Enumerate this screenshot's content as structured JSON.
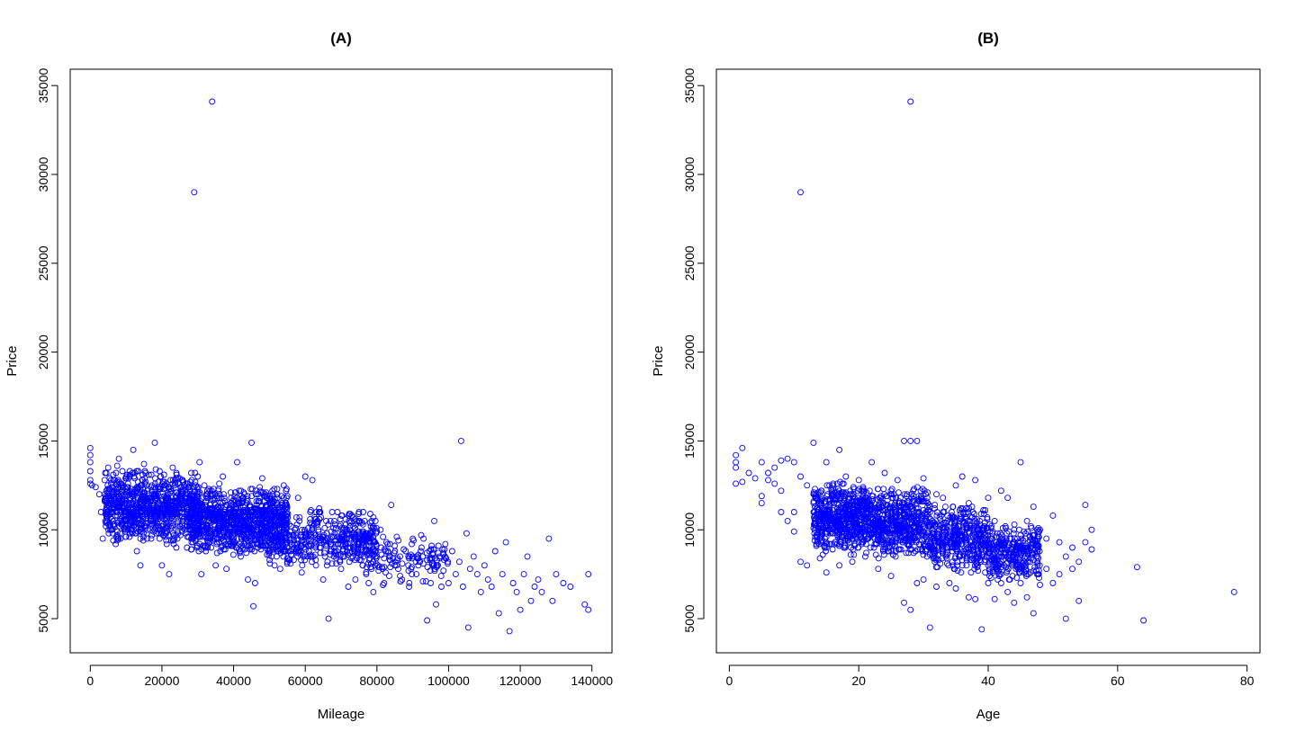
{
  "chart_data": [
    {
      "type": "scatter",
      "title": "(A)",
      "xlabel": "Mileage",
      "ylabel": "Price",
      "xlim": [
        -5600,
        145600
      ],
      "ylim": [
        3080,
        35920
      ],
      "xticks": [
        0,
        20000,
        40000,
        60000,
        80000,
        100000,
        120000,
        140000
      ],
      "yticks": [
        5000,
        10000,
        15000,
        20000,
        25000,
        30000,
        35000
      ],
      "grid": false,
      "legend": "none",
      "marker_color": "#0000FF",
      "points": [
        [
          0,
          14600
        ],
        [
          0,
          14200
        ],
        [
          0,
          13800
        ],
        [
          0,
          13300
        ],
        [
          0,
          12800
        ],
        [
          0,
          12600
        ],
        [
          500,
          12500
        ],
        [
          1500,
          12400
        ],
        [
          2500,
          12000
        ],
        [
          3000,
          11000
        ],
        [
          3500,
          9500
        ],
        [
          4000,
          12800
        ],
        [
          4500,
          13200
        ],
        [
          5000,
          13500
        ],
        [
          6000,
          12000
        ],
        [
          6500,
          11200
        ],
        [
          7000,
          10800
        ],
        [
          7500,
          13600
        ],
        [
          8000,
          14000
        ],
        [
          9000,
          11500
        ],
        [
          10000,
          10500
        ],
        [
          10500,
          12200
        ],
        [
          11000,
          13000
        ],
        [
          12000,
          14500
        ],
        [
          12500,
          9800
        ],
        [
          13000,
          8800
        ],
        [
          14000,
          8000
        ],
        [
          14500,
          12800
        ],
        [
          15000,
          13700
        ],
        [
          16000,
          10000
        ],
        [
          17000,
          9500
        ],
        [
          18000,
          14900
        ],
        [
          19000,
          11000
        ],
        [
          20000,
          8000
        ],
        [
          21000,
          12500
        ],
        [
          22000,
          7500
        ],
        [
          23000,
          13500
        ],
        [
          24000,
          9000
        ],
        [
          25000,
          11800
        ],
        [
          26000,
          12700
        ],
        [
          27000,
          9000
        ],
        [
          28000,
          10200
        ],
        [
          29000,
          29000
        ],
        [
          30000,
          13000
        ],
        [
          30500,
          13800
        ],
        [
          31000,
          7500
        ],
        [
          32000,
          9000
        ],
        [
          33000,
          11000
        ],
        [
          34000,
          34100
        ],
        [
          35000,
          8000
        ],
        [
          36000,
          12600
        ],
        [
          37000,
          13000
        ],
        [
          38000,
          7800
        ],
        [
          39000,
          11200
        ],
        [
          40000,
          9200
        ],
        [
          41000,
          13800
        ],
        [
          42000,
          8500
        ],
        [
          43000,
          12000
        ],
        [
          44000,
          7200
        ],
        [
          45000,
          14900
        ],
        [
          45500,
          5700
        ],
        [
          46000,
          7000
        ],
        [
          47000,
          10800
        ],
        [
          48000,
          12900
        ],
        [
          50000,
          8800
        ],
        [
          52000,
          11500
        ],
        [
          53000,
          7800
        ],
        [
          54000,
          12500
        ],
        [
          55000,
          8200
        ],
        [
          56000,
          10200
        ],
        [
          57000,
          9000
        ],
        [
          58000,
          11800
        ],
        [
          59000,
          7600
        ],
        [
          60000,
          13000
        ],
        [
          61000,
          9500
        ],
        [
          62000,
          12800
        ],
        [
          63000,
          8000
        ],
        [
          64000,
          11000
        ],
        [
          65000,
          7200
        ],
        [
          66000,
          9800
        ],
        [
          66500,
          5000
        ],
        [
          67000,
          10500
        ],
        [
          68000,
          8500
        ],
        [
          69000,
          11000
        ],
        [
          70000,
          7800
        ],
        [
          71000,
          9500
        ],
        [
          72000,
          6800
        ],
        [
          73000,
          10800
        ],
        [
          74000,
          7200
        ],
        [
          75000,
          11000
        ],
        [
          76000,
          8000
        ],
        [
          77000,
          7500
        ],
        [
          78000,
          9800
        ],
        [
          79000,
          6500
        ],
        [
          80000,
          8500
        ],
        [
          81000,
          10000
        ],
        [
          82000,
          7000
        ],
        [
          83000,
          9200
        ],
        [
          84000,
          11400
        ],
        [
          85000,
          8000
        ],
        [
          86000,
          9400
        ],
        [
          87000,
          7200
        ],
        [
          88000,
          8800
        ],
        [
          89000,
          6800
        ],
        [
          90000,
          9500
        ],
        [
          91000,
          7500
        ],
        [
          92000,
          8200
        ],
        [
          93000,
          9500
        ],
        [
          94000,
          4900
        ],
        [
          95000,
          7000
        ],
        [
          96000,
          10500
        ],
        [
          96500,
          5800
        ],
        [
          97000,
          8000
        ],
        [
          98000,
          6800
        ],
        [
          99000,
          8500
        ],
        [
          100000,
          7000
        ],
        [
          101000,
          8800
        ],
        [
          102000,
          7500
        ],
        [
          103000,
          8200
        ],
        [
          103500,
          15000
        ],
        [
          104000,
          6800
        ],
        [
          105000,
          9800
        ],
        [
          105500,
          4500
        ],
        [
          106000,
          7800
        ],
        [
          107000,
          8500
        ],
        [
          108000,
          7500
        ],
        [
          109000,
          6500
        ],
        [
          110000,
          8000
        ],
        [
          111000,
          7200
        ],
        [
          112000,
          6800
        ],
        [
          113000,
          8800
        ],
        [
          114000,
          5300
        ],
        [
          115000,
          7500
        ],
        [
          116000,
          9300
        ],
        [
          117000,
          4300
        ],
        [
          118000,
          7000
        ],
        [
          119000,
          6500
        ],
        [
          120000,
          5500
        ],
        [
          121000,
          7500
        ],
        [
          122000,
          8500
        ],
        [
          123000,
          6000
        ],
        [
          124000,
          6800
        ],
        [
          125000,
          7200
        ],
        [
          126000,
          6500
        ],
        [
          128000,
          9500
        ],
        [
          129000,
          6000
        ],
        [
          130000,
          7500
        ],
        [
          132000,
          7000
        ],
        [
          134000,
          6800
        ],
        [
          138000,
          5800
        ],
        [
          139000,
          7500
        ],
        [
          139000,
          5500
        ]
      ],
      "cloud_density": [
        {
          "x": [
            4000,
            30000
          ],
          "y": [
            9000,
            13500
          ],
          "n": 900
        },
        {
          "x": [
            28000,
            55000
          ],
          "y": [
            8500,
            12500
          ],
          "n": 1000
        },
        {
          "x": [
            50000,
            80000
          ],
          "y": [
            7800,
            11200
          ],
          "n": 450
        },
        {
          "x": [
            75000,
            100000
          ],
          "y": [
            6800,
            9800
          ],
          "n": 140
        }
      ]
    },
    {
      "type": "scatter",
      "title": "(B)",
      "xlabel": "Age",
      "ylabel": "Price",
      "xlim": [
        -2,
        82
      ],
      "ylim": [
        3080,
        35920
      ],
      "xticks": [
        0,
        20,
        40,
        60,
        80
      ],
      "yticks": [
        5000,
        10000,
        15000,
        20000,
        25000,
        30000,
        35000
      ],
      "grid": false,
      "legend": "none",
      "marker_color": "#0000FF",
      "points": [
        [
          1,
          14200
        ],
        [
          1,
          13800
        ],
        [
          1,
          13500
        ],
        [
          1,
          12600
        ],
        [
          2,
          14600
        ],
        [
          2,
          12700
        ],
        [
          3,
          13200
        ],
        [
          4,
          12900
        ],
        [
          5,
          13800
        ],
        [
          5,
          11900
        ],
        [
          5,
          11500
        ],
        [
          6,
          13200
        ],
        [
          6,
          12800
        ],
        [
          7,
          13500
        ],
        [
          7,
          12600
        ],
        [
          8,
          13900
        ],
        [
          8,
          12200
        ],
        [
          8,
          11000
        ],
        [
          9,
          14000
        ],
        [
          9,
          10500
        ],
        [
          10,
          13800
        ],
        [
          10,
          11000
        ],
        [
          10,
          9900
        ],
        [
          11,
          29000
        ],
        [
          11,
          13000
        ],
        [
          11,
          8200
        ],
        [
          12,
          12500
        ],
        [
          12,
          8000
        ],
        [
          13,
          14900
        ],
        [
          13,
          12000
        ],
        [
          14,
          8400
        ],
        [
          15,
          13800
        ],
        [
          15,
          9000
        ],
        [
          15,
          7600
        ],
        [
          16,
          12500
        ],
        [
          17,
          14500
        ],
        [
          17,
          8000
        ],
        [
          18,
          13000
        ],
        [
          19,
          8200
        ],
        [
          20,
          12800
        ],
        [
          21,
          8500
        ],
        [
          22,
          13800
        ],
        [
          23,
          7800
        ],
        [
          24,
          13200
        ],
        [
          25,
          7400
        ],
        [
          26,
          12800
        ],
        [
          27,
          15000
        ],
        [
          27,
          5900
        ],
        [
          28,
          15000
        ],
        [
          28,
          34100
        ],
        [
          28,
          5500
        ],
        [
          29,
          15000
        ],
        [
          29,
          7000
        ],
        [
          30,
          12900
        ],
        [
          30,
          7200
        ],
        [
          31,
          11000
        ],
        [
          31,
          4500
        ],
        [
          32,
          12000
        ],
        [
          32,
          6800
        ],
        [
          33,
          9500
        ],
        [
          33,
          11800
        ],
        [
          34,
          7000
        ],
        [
          35,
          12500
        ],
        [
          35,
          6700
        ],
        [
          36,
          13000
        ],
        [
          36,
          8000
        ],
        [
          37,
          11500
        ],
        [
          37,
          6200
        ],
        [
          38,
          12800
        ],
        [
          38,
          6100
        ],
        [
          39,
          10000
        ],
        [
          39,
          4400
        ],
        [
          40,
          11800
        ],
        [
          40,
          7000
        ],
        [
          41,
          10500
        ],
        [
          41,
          6100
        ],
        [
          42,
          12200
        ],
        [
          42,
          7000
        ],
        [
          43,
          11800
        ],
        [
          43,
          6500
        ],
        [
          44,
          10000
        ],
        [
          44,
          5900
        ],
        [
          45,
          13800
        ],
        [
          45,
          7000
        ],
        [
          46,
          10500
        ],
        [
          46,
          6200
        ],
        [
          47,
          11300
        ],
        [
          47,
          5300
        ],
        [
          48,
          10000
        ],
        [
          48,
          6900
        ],
        [
          49,
          9500
        ],
        [
          49,
          7800
        ],
        [
          50,
          10800
        ],
        [
          50,
          7000
        ],
        [
          51,
          9300
        ],
        [
          51,
          7500
        ],
        [
          52,
          8500
        ],
        [
          52,
          5000
        ],
        [
          53,
          9000
        ],
        [
          53,
          7800
        ],
        [
          54,
          8200
        ],
        [
          54,
          6000
        ],
        [
          55,
          11400
        ],
        [
          55,
          9300
        ],
        [
          56,
          10000
        ],
        [
          56,
          8900
        ],
        [
          63,
          7900
        ],
        [
          64,
          4900
        ],
        [
          78,
          6500
        ]
      ],
      "cloud_density": [
        {
          "x": [
            13,
            22
          ],
          "y": [
            8500,
            12800
          ],
          "n": 650
        },
        {
          "x": [
            22,
            31
          ],
          "y": [
            8200,
            12500
          ],
          "n": 550
        },
        {
          "x": [
            31,
            40
          ],
          "y": [
            7500,
            11500
          ],
          "n": 420
        },
        {
          "x": [
            40,
            48
          ],
          "y": [
            7000,
            10500
          ],
          "n": 320
        }
      ]
    }
  ]
}
